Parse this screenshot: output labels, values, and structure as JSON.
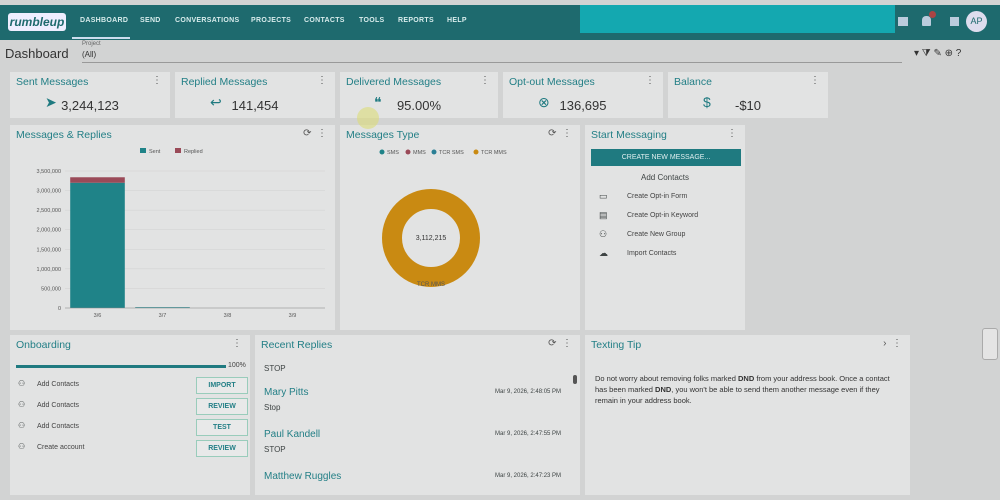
{
  "nav": {
    "logo": "rumbleup",
    "items": [
      "DASHBOARD",
      "SEND",
      "CONVERSATIONS",
      "PROJECTS",
      "CONTACTS",
      "TOOLS",
      "REPORTS",
      "HELP"
    ],
    "avatar": "AP"
  },
  "header": {
    "title": "Dashboard",
    "project_label": "Project",
    "project_value": "(All)"
  },
  "kpis": [
    {
      "title": "Sent Messages",
      "value": "3,244,123"
    },
    {
      "title": "Replied Messages",
      "value": "141,454"
    },
    {
      "title": "Delivered Messages",
      "value": "95.00%"
    },
    {
      "title": "Opt-out Messages",
      "value": "136,695"
    },
    {
      "title": "Balance",
      "value": "-$10"
    }
  ],
  "chart_data": [
    {
      "type": "bar",
      "stacked": true,
      "title": "Messages & Replies",
      "categories": [
        "3/6",
        "3/7",
        "3/8",
        "3/9"
      ],
      "series": [
        {
          "name": "Sent",
          "color": "#1f8388",
          "values": [
            3200000,
            20000,
            0,
            0
          ]
        },
        {
          "name": "Replied",
          "color": "#9a4a58",
          "values": [
            140000,
            0,
            0,
            0
          ]
        }
      ],
      "ylim": [
        0,
        3500000
      ],
      "yticks": [
        0,
        {
          "value": 500000,
          "label": "500,000"
        },
        {
          "value": 1000000,
          "label": "1,000,000"
        },
        {
          "value": 1500000,
          "label": "1,500,000"
        },
        {
          "value": 2000000,
          "label": "2,000,000"
        },
        {
          "value": 2500000,
          "label": "2,500,000"
        },
        {
          "value": 3000000,
          "label": "3,000,000"
        },
        {
          "value": 3500000,
          "label": "3,500,000"
        }
      ],
      "legend": "top"
    },
    {
      "type": "pie",
      "donut": true,
      "title": "Messages Type",
      "categories": [
        "SMS",
        "MMS",
        "TCR SMS",
        "TCR MMS"
      ],
      "values": [
        0,
        0,
        0,
        3112215
      ],
      "colors": [
        "#1f8388",
        "#9a4a58",
        "#2a7f95",
        "#c98a12"
      ],
      "center_label": "3,112,215",
      "legend": "top"
    }
  ],
  "start_messaging": {
    "title": "Start Messaging",
    "button": "CREATE NEW MESSAGE...",
    "subtitle": "Add Contacts",
    "items": [
      "Create Opt-in Form",
      "Create Opt-in Keyword",
      "Create New Group",
      "Import Contacts"
    ]
  },
  "onboarding": {
    "title": "Onboarding",
    "progress": 100,
    "progress_label": "100%",
    "items": [
      {
        "label": "Add Contacts",
        "action": "IMPORT"
      },
      {
        "label": "Add Contacts",
        "action": "REVIEW"
      },
      {
        "label": "Add Contacts",
        "action": "TEST"
      },
      {
        "label": "Create account",
        "action": "REVIEW"
      }
    ]
  },
  "recent_replies": {
    "title": "Recent Replies",
    "first": "STOP",
    "items": [
      {
        "name": "Mary Pitts",
        "message": "Stop",
        "time": "Mar 9, 2026, 2:48:05 PM"
      },
      {
        "name": "Paul Kandell",
        "message": "STOP",
        "time": "Mar 9, 2026, 2:47:55 PM"
      },
      {
        "name": "Matthew Ruggles",
        "message": "",
        "time": "Mar 9, 2026, 2:47:23 PM"
      }
    ]
  },
  "texting_tip": {
    "title": "Texting Tip",
    "parts": [
      "Do not worry about removing folks marked ",
      "DND",
      " from your address book. Once a contact has been marked ",
      "DND",
      ", you won't be able to send them another message even if they remain in your address book."
    ]
  }
}
